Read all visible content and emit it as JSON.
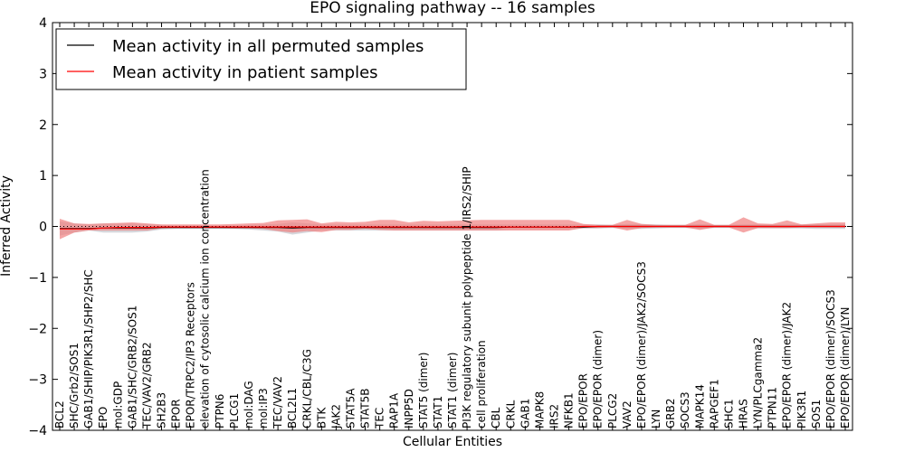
{
  "chart_data": {
    "type": "line",
    "title": "EPO signaling pathway -- 16 samples",
    "xlabel": "Cellular Entities",
    "ylabel": "Inferred Activity",
    "ylim": [
      -4,
      4
    ],
    "yticks": [
      -4,
      -3,
      -2,
      -1,
      0,
      1,
      2,
      3,
      4
    ],
    "ytick_labels": [
      "−4",
      "−3",
      "−2",
      "−1",
      "0",
      "1",
      "2",
      "3",
      "4"
    ],
    "legend_position": "top-left",
    "categories": [
      "BCL2",
      "SHC/Grb2/SOS1",
      "GAB1/SHIP/PIK3R1/SHP2/SHC",
      "EPO",
      "mol:GDP",
      "GAB1/SHC/GRB2/SOS1",
      "TEC/VAV2/GRB2",
      "SH2B3",
      "EPOR",
      "EPOR/TRPC2/IP3 Receptors",
      "elevation of cytosolic calcium ion concentration",
      "PTPN6",
      "PLCG1",
      "mol:DAG",
      "mol:IP3",
      "TEC/VAV2",
      "BCL2L1",
      "CRKL/CBL/C3G",
      "BTK",
      "JAK2",
      "STAT5A",
      "STAT5B",
      "TEC",
      "RAP1A",
      "INPP5D",
      "STAT5 (dimer)",
      "STAT1",
      "STAT1 (dimer)",
      "PI3K regulatory subunit polypeptide 1/IRS2/SHIP",
      "cell proliferation",
      "CBL",
      "CRKL",
      "GAB1",
      "MAPK8",
      "IRS2",
      "NFKB1",
      "EPO/EPOR",
      "EPO/EPOR (dimer)",
      "PLCG2",
      "VAV2",
      "EPO/EPOR (dimer)/JAK2/SOCS3",
      "LYN",
      "GRB2",
      "SOCS3",
      "MAPK14",
      "RAPGEF1",
      "SHC1",
      "HRAS",
      "LYN/PLCgamma2",
      "PTPN11",
      "EPO/EPOR (dimer)/JAK2",
      "PIK3R1",
      "SOS1",
      "EPO/EPOR (dimer)/SOCS3",
      "EPO/EPOR (dimer)/LYN"
    ],
    "series": [
      {
        "name": "Mean activity in all permuted samples",
        "color": "#000000",
        "band_color": "#c0c0c8",
        "values": [
          -0.04,
          -0.04,
          -0.04,
          -0.03,
          -0.03,
          -0.03,
          -0.03,
          -0.02,
          -0.02,
          -0.02,
          -0.02,
          -0.02,
          -0.02,
          -0.02,
          -0.02,
          -0.02,
          -0.03,
          -0.02,
          -0.02,
          -0.02,
          -0.02,
          -0.02,
          -0.02,
          -0.02,
          -0.02,
          -0.02,
          -0.02,
          -0.02,
          -0.02,
          -0.02,
          -0.02,
          -0.01,
          -0.01,
          -0.01,
          -0.01,
          -0.01,
          -0.01,
          0,
          0,
          0,
          0,
          0,
          0,
          0,
          0,
          0,
          0,
          0,
          0,
          0,
          0,
          0,
          0,
          0,
          0
        ],
        "lower": [
          -0.18,
          -0.12,
          -0.08,
          -0.12,
          -0.12,
          -0.12,
          -0.1,
          -0.06,
          -0.05,
          -0.05,
          -0.05,
          -0.05,
          -0.05,
          -0.06,
          -0.08,
          -0.1,
          -0.16,
          -0.12,
          -0.08,
          -0.08,
          -0.08,
          -0.08,
          -0.08,
          -0.08,
          -0.08,
          -0.08,
          -0.08,
          -0.08,
          -0.08,
          -0.08,
          -0.08,
          -0.06,
          -0.06,
          -0.06,
          -0.06,
          -0.06,
          -0.04,
          -0.04,
          -0.03,
          -0.05,
          -0.05,
          -0.04,
          -0.03,
          -0.03,
          -0.05,
          -0.03,
          -0.03,
          -0.04,
          -0.04,
          -0.04,
          -0.04,
          -0.04,
          -0.05,
          -0.05,
          -0.05
        ],
        "upper": [
          0.1,
          0.06,
          0.04,
          0.06,
          0.06,
          0.06,
          0.05,
          0.03,
          0.02,
          0.02,
          0.02,
          0.02,
          0.02,
          0.03,
          0.04,
          0.05,
          0.08,
          0.06,
          0.04,
          0.04,
          0.04,
          0.04,
          0.04,
          0.04,
          0.04,
          0.04,
          0.04,
          0.04,
          0.04,
          0.04,
          0.04,
          0.04,
          0.04,
          0.04,
          0.04,
          0.04,
          0.04,
          0.04,
          0.03,
          0.05,
          0.05,
          0.04,
          0.03,
          0.03,
          0.05,
          0.03,
          0.03,
          0.04,
          0.04,
          0.04,
          0.04,
          0.04,
          0.05,
          0.05,
          0.05
        ]
      },
      {
        "name": "Mean activity in patient samples",
        "color": "#ff0000",
        "band_color": "#f08080",
        "values": [
          -0.05,
          -0.05,
          -0.05,
          -0.03,
          -0.02,
          -0.02,
          -0.02,
          -0.01,
          -0.01,
          -0.01,
          -0.01,
          -0.01,
          -0.01,
          -0.01,
          -0.01,
          -0.01,
          -0.01,
          -0.01,
          -0.01,
          -0.01,
          -0.01,
          -0.01,
          -0.01,
          -0.01,
          -0.01,
          -0.01,
          -0.01,
          -0.01,
          -0.01,
          -0.01,
          -0.01,
          -0.01,
          -0.01,
          -0.01,
          -0.01,
          -0.01,
          0,
          0,
          0,
          0,
          0,
          0,
          0,
          0,
          0,
          0,
          0,
          0,
          0,
          0,
          0,
          0,
          0,
          0,
          0
        ],
        "lower": [
          -0.25,
          -0.12,
          -0.08,
          -0.08,
          -0.08,
          -0.08,
          -0.08,
          -0.04,
          -0.03,
          -0.03,
          -0.03,
          -0.03,
          -0.04,
          -0.04,
          -0.05,
          -0.09,
          -0.12,
          -0.09,
          -0.11,
          -0.07,
          -0.07,
          -0.05,
          -0.07,
          -0.08,
          -0.08,
          -0.08,
          -0.08,
          -0.08,
          -0.08,
          -0.08,
          -0.08,
          -0.08,
          -0.08,
          -0.08,
          -0.08,
          -0.08,
          -0.03,
          -0.03,
          -0.02,
          -0.08,
          -0.03,
          -0.02,
          -0.02,
          -0.02,
          -0.07,
          -0.02,
          -0.02,
          -0.12,
          -0.03,
          -0.03,
          -0.03,
          -0.02,
          -0.02,
          -0.02,
          -0.02
        ],
        "upper": [
          0.15,
          0.06,
          0.05,
          0.06,
          0.07,
          0.08,
          0.06,
          0.04,
          0.04,
          0.04,
          0.04,
          0.04,
          0.05,
          0.06,
          0.07,
          0.12,
          0.13,
          0.14,
          0.06,
          0.09,
          0.08,
          0.09,
          0.13,
          0.13,
          0.08,
          0.11,
          0.1,
          0.11,
          0.12,
          0.13,
          0.13,
          0.13,
          0.13,
          0.13,
          0.13,
          0.13,
          0.05,
          0.03,
          0.03,
          0.13,
          0.05,
          0.03,
          0.03,
          0.03,
          0.14,
          0.03,
          0.03,
          0.18,
          0.06,
          0.05,
          0.12,
          0.04,
          0.06,
          0.08,
          0.08
        ]
      }
    ]
  }
}
